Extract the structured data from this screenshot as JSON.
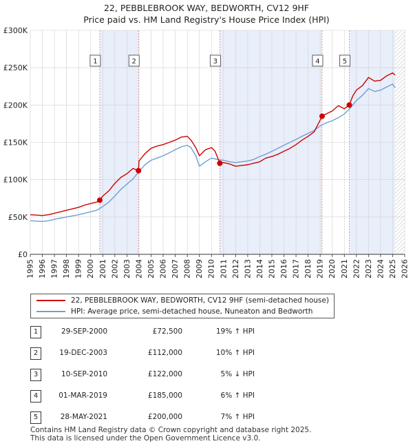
{
  "title_line1": "22, PEBBLEBROOK WAY, BEDWORTH, CV12 9HF",
  "title_line2": "Price paid vs. HM Land Registry's House Price Index (HPI)",
  "colors": {
    "property": "#cc0000",
    "hpi": "#6f9fd1",
    "shade": "#e8eefa",
    "grid": "#d0d0d0",
    "vline": "#e08080"
  },
  "chart_data": {
    "type": "line",
    "title": "22, PEBBLEBROOK WAY, BEDWORTH, CV12 9HF",
    "subtitle": "Price paid vs. HM Land Registry's House Price Index (HPI)",
    "xlabel": "",
    "ylabel": "",
    "xlim": [
      1995,
      2026
    ],
    "ylim": [
      0,
      300000
    ],
    "yticks": [
      0,
      50000,
      100000,
      150000,
      200000,
      250000,
      300000
    ],
    "ytick_labels": [
      "£0",
      "£50K",
      "£100K",
      "£150K",
      "£200K",
      "£250K",
      "£300K"
    ],
    "xticks": [
      1995,
      1996,
      1997,
      1998,
      1999,
      2000,
      2001,
      2002,
      2003,
      2004,
      2005,
      2006,
      2007,
      2008,
      2009,
      2010,
      2011,
      2012,
      2013,
      2014,
      2015,
      2016,
      2017,
      2018,
      2019,
      2020,
      2021,
      2022,
      2023,
      2024,
      2025,
      2026
    ],
    "xtick_labels": [
      "1995",
      "1996",
      "1997",
      "1998",
      "1999",
      "2000",
      "2001",
      "2002",
      "2003",
      "2004",
      "2005",
      "2006",
      "2007",
      "2008",
      "2009",
      "2010",
      "2011",
      "2012",
      "2013",
      "2014",
      "2015",
      "2016",
      "2017",
      "2018",
      "2019",
      "2020",
      "2021",
      "2022",
      "2023",
      "2024",
      "2025",
      "2026"
    ],
    "grid": true,
    "legend_position": "below",
    "shaded_ranges": [
      [
        2000.75,
        2003.96
      ],
      [
        2010.69,
        2019.16
      ],
      [
        2021.41,
        2025.2
      ]
    ],
    "hatched_from": 2025.2,
    "series": [
      {
        "name": "22, PEBBLEBROOK WAY, BEDWORTH, CV12 9HF (semi-detached house)",
        "x": [
          1995,
          1995.5,
          1996,
          1996.5,
          1997,
          1997.5,
          1998,
          1998.5,
          1999,
          1999.5,
          2000,
          2000.5,
          2000.75,
          2001,
          2001.5,
          2002,
          2002.5,
          2003,
          2003.5,
          2003.96,
          2004,
          2004.5,
          2005,
          2005.5,
          2006,
          2006.5,
          2007,
          2007.5,
          2008,
          2008.3,
          2008.7,
          2009,
          2009.5,
          2010,
          2010.3,
          2010.69,
          2011,
          2011.5,
          2012,
          2012.5,
          2013,
          2013.5,
          2014,
          2014.5,
          2015,
          2015.5,
          2016,
          2016.5,
          2017,
          2017.5,
          2018,
          2018.5,
          2019.16,
          2019.5,
          2020,
          2020.5,
          2021,
          2021.41,
          2021.7,
          2022,
          2022.5,
          2023,
          2023.5,
          2024,
          2024.5,
          2025,
          2025.2
        ],
        "y": [
          53000,
          52500,
          52000,
          53000,
          55000,
          57000,
          59000,
          61000,
          63000,
          66000,
          68000,
          70000,
          72500,
          78000,
          85000,
          95000,
          103000,
          108000,
          115000,
          112000,
          125000,
          135000,
          142000,
          145000,
          147000,
          150000,
          153000,
          157000,
          158000,
          153000,
          143000,
          132000,
          140000,
          143000,
          138000,
          122000,
          123000,
          121000,
          118000,
          119000,
          120000,
          122000,
          124000,
          129000,
          131000,
          134000,
          138000,
          142000,
          147000,
          153000,
          158000,
          164000,
          185000,
          188000,
          192000,
          199000,
          195000,
          200000,
          212000,
          220000,
          226000,
          237000,
          232000,
          233000,
          239000,
          243000,
          240000
        ]
      },
      {
        "name": "HPI: Average price, semi-detached house, Nuneaton and Bedworth",
        "x": [
          1995,
          1995.5,
          1996,
          1996.5,
          1997,
          1997.5,
          1998,
          1998.5,
          1999,
          1999.5,
          2000,
          2000.5,
          2001,
          2001.5,
          2002,
          2002.5,
          2003,
          2003.5,
          2004,
          2004.5,
          2005,
          2005.5,
          2006,
          2006.5,
          2007,
          2007.5,
          2008,
          2008.3,
          2008.7,
          2009,
          2009.5,
          2010,
          2010.5,
          2011,
          2011.5,
          2012,
          2012.5,
          2013,
          2013.5,
          2014,
          2014.5,
          2015,
          2015.5,
          2016,
          2016.5,
          2017,
          2017.5,
          2018,
          2018.5,
          2019,
          2019.5,
          2020,
          2020.5,
          2021,
          2021.5,
          2022,
          2022.5,
          2023,
          2023.5,
          2024,
          2024.5,
          2025,
          2025.2
        ],
        "y": [
          45000,
          44500,
          44000,
          45000,
          47000,
          48500,
          50000,
          51500,
          53000,
          55000,
          57000,
          59000,
          64000,
          70000,
          78000,
          87000,
          94000,
          101000,
          111000,
          120000,
          126000,
          129000,
          132000,
          136000,
          140000,
          144000,
          146000,
          143000,
          132000,
          118000,
          124000,
          129000,
          127000,
          126000,
          124000,
          123000,
          124000,
          125000,
          127000,
          131000,
          134000,
          138000,
          142000,
          146000,
          150000,
          154000,
          158000,
          162000,
          166000,
          172000,
          176000,
          179000,
          183000,
          188000,
          196000,
          206000,
          213000,
          222000,
          218000,
          220000,
          224000,
          228000,
          223000
        ]
      }
    ],
    "markers": [
      {
        "label": "1",
        "x": 2000.75,
        "y": 72500
      },
      {
        "label": "2",
        "x": 2003.96,
        "y": 112000
      },
      {
        "label": "3",
        "x": 2010.69,
        "y": 122000
      },
      {
        "label": "4",
        "x": 2019.16,
        "y": 185000
      },
      {
        "label": "5",
        "x": 2021.41,
        "y": 200000
      }
    ]
  },
  "legend": {
    "property": "22, PEBBLEBROOK WAY, BEDWORTH, CV12 9HF (semi-detached house)",
    "hpi": "HPI: Average price, semi-detached house, Nuneaton and Bedworth"
  },
  "transactions": [
    {
      "num": "1",
      "date": "29-SEP-2000",
      "price": "£72,500",
      "hpi": "19% ↑ HPI"
    },
    {
      "num": "2",
      "date": "19-DEC-2003",
      "price": "£112,000",
      "hpi": "10% ↑ HPI"
    },
    {
      "num": "3",
      "date": "10-SEP-2010",
      "price": "£122,000",
      "hpi": "5% ↓ HPI"
    },
    {
      "num": "4",
      "date": "01-MAR-2019",
      "price": "£185,000",
      "hpi": "6% ↑ HPI"
    },
    {
      "num": "5",
      "date": "28-MAY-2021",
      "price": "£200,000",
      "hpi": "7% ↑ HPI"
    }
  ],
  "footer": {
    "line1": "Contains HM Land Registry data © Crown copyright and database right 2025.",
    "line2": "This data is licensed under the Open Government Licence v3.0."
  }
}
